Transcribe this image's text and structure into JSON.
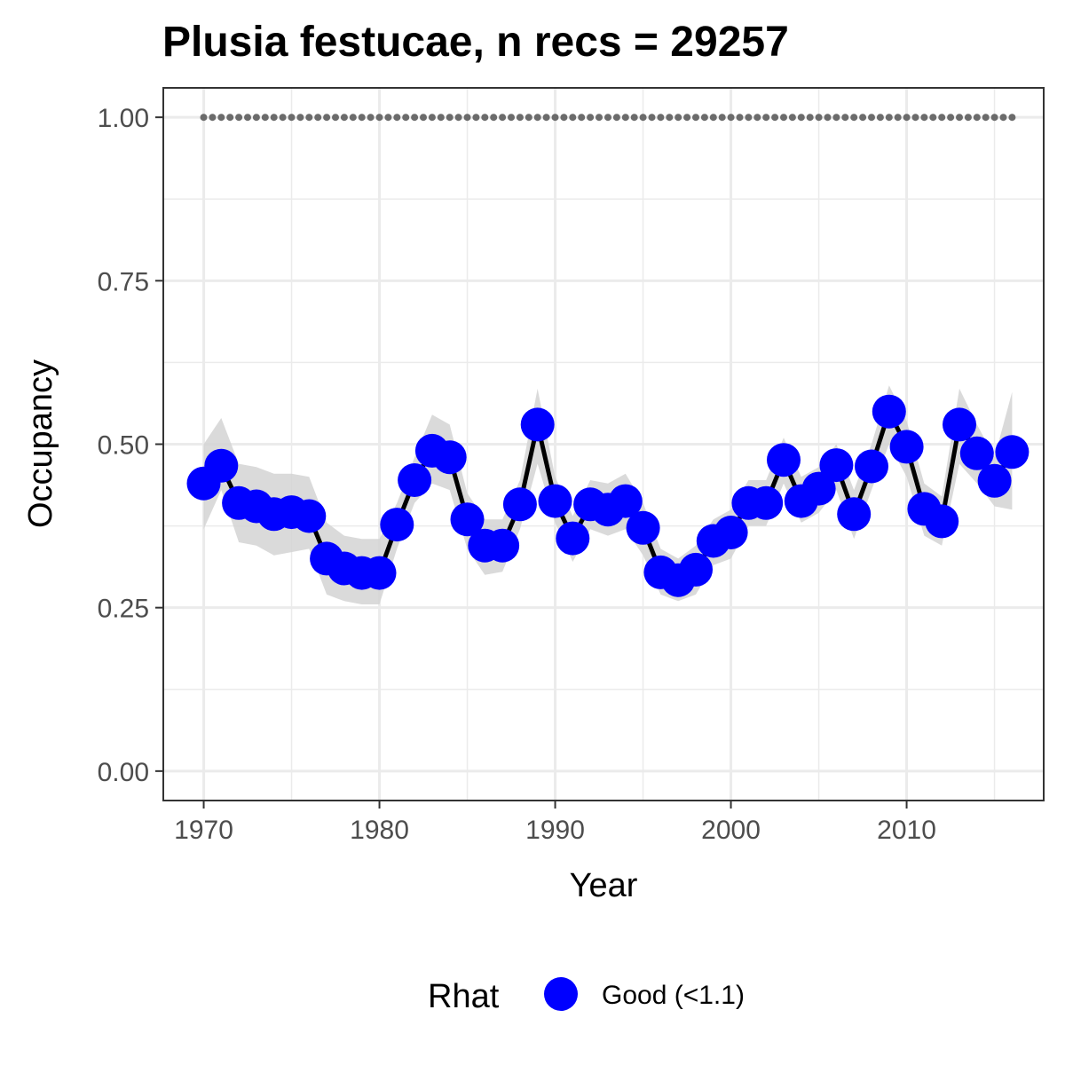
{
  "chart_data": {
    "type": "line",
    "title": "Plusia festucae, n recs = 29257",
    "xlabel": "Year",
    "ylabel": "Occupancy",
    "xlim": [
      1967.7,
      2017.8
    ],
    "ylim": [
      -0.045,
      1.045
    ],
    "x_ticks": [
      1970,
      1980,
      1990,
      2000,
      2010
    ],
    "x_tick_labels": [
      "1970",
      "1980",
      "1990",
      "2000",
      "2010"
    ],
    "y_ticks": [
      0,
      0.25,
      0.5,
      0.75,
      1.0
    ],
    "y_tick_labels": [
      "0.00",
      "0.25",
      "0.50",
      "0.75",
      "1.00"
    ],
    "grid": true,
    "legend_position": "bottom",
    "legend_title": "Rhat",
    "legend_items": [
      {
        "label": "Good (<1.1)",
        "color": "#0000ff"
      }
    ],
    "colors": {
      "points": "#0000ff",
      "line": "#000000",
      "ribbon": "#d3d3d3",
      "reference_dots": "#6b6b6b"
    },
    "reference_line": {
      "y": 1.0,
      "x_from": 1970,
      "x_to": 2016,
      "style": "dotted"
    },
    "series": [
      {
        "x": [
          1970,
          1971,
          1972,
          1973,
          1974,
          1975,
          1976,
          1977,
          1978,
          1979,
          1980,
          1981,
          1982,
          1983,
          1984,
          1985,
          1986,
          1987,
          1988,
          1989,
          1990,
          1991,
          1992,
          1993,
          1994,
          1995,
          1996,
          1997,
          1998,
          1999,
          2000,
          2001,
          2002,
          2003,
          2004,
          2005,
          2006,
          2007,
          2008,
          2009,
          2010,
          2011,
          2012,
          2013,
          2014,
          2015,
          2016
        ],
        "y": [
          0.44,
          0.467,
          0.41,
          0.405,
          0.393,
          0.396,
          0.39,
          0.325,
          0.31,
          0.303,
          0.303,
          0.377,
          0.445,
          0.49,
          0.48,
          0.385,
          0.345,
          0.345,
          0.408,
          0.53,
          0.413,
          0.356,
          0.408,
          0.4,
          0.413,
          0.372,
          0.304,
          0.292,
          0.308,
          0.352,
          0.365,
          0.41,
          0.41,
          0.476,
          0.413,
          0.432,
          0.468,
          0.393,
          0.466,
          0.55,
          0.496,
          0.401,
          0.382,
          0.53,
          0.486,
          0.444,
          0.488
        ],
        "lower": [
          0.37,
          0.43,
          0.35,
          0.345,
          0.33,
          0.335,
          0.34,
          0.27,
          0.26,
          0.255,
          0.255,
          0.34,
          0.41,
          0.44,
          0.43,
          0.34,
          0.3,
          0.305,
          0.37,
          0.47,
          0.38,
          0.32,
          0.37,
          0.36,
          0.37,
          0.33,
          0.27,
          0.26,
          0.27,
          0.315,
          0.325,
          0.375,
          0.375,
          0.44,
          0.38,
          0.395,
          0.43,
          0.355,
          0.43,
          0.5,
          0.45,
          0.36,
          0.345,
          0.47,
          0.44,
          0.405,
          0.4
        ],
        "upper": [
          0.5,
          0.54,
          0.47,
          0.465,
          0.455,
          0.455,
          0.45,
          0.38,
          0.36,
          0.355,
          0.355,
          0.41,
          0.48,
          0.545,
          0.53,
          0.425,
          0.385,
          0.385,
          0.445,
          0.585,
          0.45,
          0.39,
          0.445,
          0.44,
          0.455,
          0.41,
          0.34,
          0.325,
          0.345,
          0.385,
          0.4,
          0.445,
          0.445,
          0.51,
          0.45,
          0.465,
          0.5,
          0.43,
          0.5,
          0.59,
          0.535,
          0.44,
          0.42,
          0.585,
          0.53,
          0.48,
          0.58
        ]
      }
    ]
  }
}
